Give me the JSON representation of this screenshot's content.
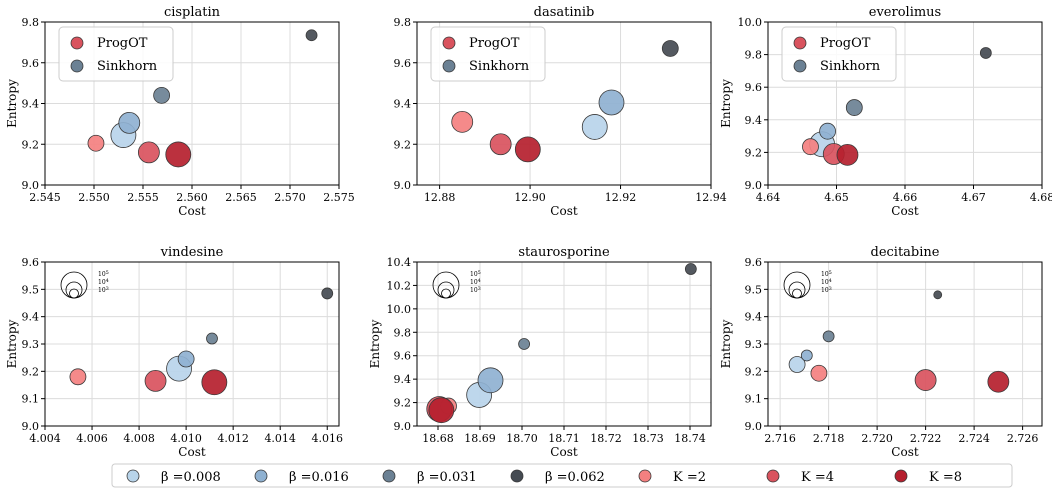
{
  "legend": {
    "entries": [
      {
        "label": "β =0.008",
        "color": "#b8d4ea"
      },
      {
        "label": "β =0.016",
        "color": "#8fb1d1"
      },
      {
        "label": "β =0.031",
        "color": "#6b8194"
      },
      {
        "label": "β =0.062",
        "color": "#454b52"
      },
      {
        "label": "K =2",
        "color": "#f48080"
      },
      {
        "label": "K =4",
        "color": "#d9535e"
      },
      {
        "label": "K =8",
        "color": "#b51f2e"
      }
    ],
    "inset": {
      "progot": "ProgOT",
      "sinkhorn": "Sinkhorn",
      "progot_color": "#d9535e",
      "sinkhorn_color": "#6b8194"
    },
    "sizes": [
      "10^5",
      "10^4",
      "10^3"
    ]
  },
  "chart_data": [
    {
      "type": "scatter",
      "title": "cisplatin",
      "xlabel": "Cost",
      "ylabel": "Entropy",
      "xlim": [
        2.545,
        2.575
      ],
      "ylim": [
        9.0,
        9.8
      ],
      "xticks": [
        "2.545",
        "2.550",
        "2.555",
        "2.560",
        "2.565",
        "2.570",
        "2.575"
      ],
      "yticks": [
        "9.0",
        "9.2",
        "9.4",
        "9.6",
        "9.8"
      ],
      "grid": true,
      "legend": "inset",
      "points": [
        {
          "x": 2.5502,
          "y": 9.205,
          "color": 4,
          "size": "small"
        },
        {
          "x": 2.5556,
          "y": 9.16,
          "color": 5,
          "size": "medium"
        },
        {
          "x": 2.5586,
          "y": 9.15,
          "color": 6,
          "size": "large"
        },
        {
          "x": 2.553,
          "y": 9.245,
          "color": 0,
          "size": "large"
        },
        {
          "x": 2.5536,
          "y": 9.305,
          "color": 1,
          "size": "medium"
        },
        {
          "x": 2.5569,
          "y": 9.44,
          "color": 2,
          "size": "small"
        },
        {
          "x": 2.5722,
          "y": 9.735,
          "color": 3,
          "size": "tiny"
        }
      ]
    },
    {
      "type": "scatter",
      "title": "dasatinib",
      "xlabel": "Cost",
      "ylabel": "",
      "xlim": [
        12.875,
        12.94
      ],
      "ylim": [
        9.0,
        9.8
      ],
      "xticks": [
        "12.88",
        "12.90",
        "12.92",
        "12.94"
      ],
      "xtick_values": [
        12.88,
        12.9,
        12.92,
        12.94
      ],
      "yticks": [
        "9.0",
        "9.2",
        "9.4",
        "9.6",
        "9.8"
      ],
      "grid": true,
      "legend": "inset",
      "points": [
        {
          "x": 12.885,
          "y": 9.31,
          "color": 4,
          "size": "medium"
        },
        {
          "x": 12.8935,
          "y": 9.2,
          "color": 5,
          "size": "medium"
        },
        {
          "x": 12.8995,
          "y": 9.175,
          "color": 6,
          "size": "large"
        },
        {
          "x": 12.9143,
          "y": 9.285,
          "color": 0,
          "size": "large"
        },
        {
          "x": 12.918,
          "y": 9.405,
          "color": 1,
          "size": "large"
        },
        {
          "x": 12.931,
          "y": 9.67,
          "color": 3,
          "size": "small"
        }
      ]
    },
    {
      "type": "scatter",
      "title": "everolimus",
      "xlabel": "Cost",
      "ylabel": "Entropy",
      "xlim": [
        4.64,
        4.68
      ],
      "ylim": [
        9.0,
        10.0
      ],
      "xticks": [
        "4.64",
        "4.65",
        "4.66",
        "4.67",
        "4.68"
      ],
      "yticks": [
        "9.0",
        "9.2",
        "9.4",
        "9.6",
        "9.8",
        "10.0"
      ],
      "grid": true,
      "legend": "inset",
      "points": [
        {
          "x": 4.6479,
          "y": 9.25,
          "color": 0,
          "size": "large"
        },
        {
          "x": 4.6487,
          "y": 9.33,
          "color": 1,
          "size": "small"
        },
        {
          "x": 4.6526,
          "y": 9.475,
          "color": 2,
          "size": "small"
        },
        {
          "x": 4.6718,
          "y": 9.81,
          "color": 3,
          "size": "tiny"
        },
        {
          "x": 4.6462,
          "y": 9.235,
          "color": 4,
          "size": "small"
        },
        {
          "x": 4.6496,
          "y": 9.19,
          "color": 5,
          "size": "medium"
        },
        {
          "x": 4.6516,
          "y": 9.185,
          "color": 6,
          "size": "medium"
        }
      ]
    },
    {
      "type": "scatter",
      "title": "vindesine",
      "xlabel": "Cost",
      "ylabel": "Entropy",
      "xlim": [
        4.004,
        4.0165
      ],
      "ylim": [
        9.0,
        9.6
      ],
      "xticks": [
        "4.004",
        "4.006",
        "4.008",
        "4.010",
        "4.012",
        "4.014",
        "4.016"
      ],
      "xtick_values": [
        4.004,
        4.006,
        4.008,
        4.01,
        4.012,
        4.014,
        4.016
      ],
      "yticks": [
        "9.0",
        "9.1",
        "9.2",
        "9.3",
        "9.4",
        "9.5",
        "9.6"
      ],
      "grid": true,
      "legend": "sizes",
      "points": [
        {
          "x": 4.0054,
          "y": 9.18,
          "color": 4,
          "size": "small"
        },
        {
          "x": 4.0087,
          "y": 9.165,
          "color": 5,
          "size": "medium"
        },
        {
          "x": 4.0097,
          "y": 9.21,
          "color": 0,
          "size": "large"
        },
        {
          "x": 4.01,
          "y": 9.245,
          "color": 1,
          "size": "small"
        },
        {
          "x": 4.0111,
          "y": 9.32,
          "color": 2,
          "size": "tiny"
        },
        {
          "x": 4.0112,
          "y": 9.16,
          "color": 6,
          "size": "large"
        },
        {
          "x": 4.016,
          "y": 9.485,
          "color": 3,
          "size": "tiny"
        }
      ]
    },
    {
      "type": "scatter",
      "title": "staurosporine",
      "xlabel": "Cost",
      "ylabel": "Entropy",
      "xlim": [
        18.675,
        18.745
      ],
      "ylim": [
        9.0,
        10.4
      ],
      "xticks": [
        "18.68",
        "18.69",
        "18.70",
        "18.71",
        "18.72",
        "18.73",
        "18.74"
      ],
      "xtick_values": [
        18.68,
        18.69,
        18.7,
        18.71,
        18.72,
        18.73,
        18.74
      ],
      "yticks": [
        "9.0",
        "9.2",
        "9.4",
        "9.6",
        "9.8",
        "10.0",
        "10.2",
        "10.4"
      ],
      "grid": true,
      "legend": "sizes",
      "points": [
        {
          "x": 18.6825,
          "y": 9.17,
          "color": 4,
          "size": "small"
        },
        {
          "x": 18.6898,
          "y": 9.265,
          "color": 0,
          "size": "large"
        },
        {
          "x": 18.6925,
          "y": 9.39,
          "color": 1,
          "size": "large"
        },
        {
          "x": 18.7005,
          "y": 9.7,
          "color": 2,
          "size": "tiny"
        },
        {
          "x": 18.7402,
          "y": 10.34,
          "color": 3,
          "size": "tiny"
        },
        {
          "x": 18.6803,
          "y": 9.145,
          "color": 5,
          "size": "large"
        },
        {
          "x": 18.6808,
          "y": 9.135,
          "color": 6,
          "size": "large"
        }
      ]
    },
    {
      "type": "scatter",
      "title": "decitabine",
      "xlabel": "Cost",
      "ylabel": "Entropy",
      "xlim": [
        2.7155,
        2.7268
      ],
      "ylim": [
        9.0,
        9.6
      ],
      "xticks": [
        "2.716",
        "2.718",
        "2.720",
        "2.722",
        "2.724",
        "2.726"
      ],
      "xtick_values": [
        2.716,
        2.718,
        2.72,
        2.722,
        2.724,
        2.726
      ],
      "yticks": [
        "9.0",
        "9.1",
        "9.2",
        "9.3",
        "9.4",
        "9.5",
        "9.6"
      ],
      "grid": true,
      "legend": "sizes",
      "points": [
        {
          "x": 2.7167,
          "y": 9.225,
          "color": 0,
          "size": "small"
        },
        {
          "x": 2.7171,
          "y": 9.258,
          "color": 1,
          "size": "tiny"
        },
        {
          "x": 2.718,
          "y": 9.328,
          "color": 2,
          "size": "tiny"
        },
        {
          "x": 2.7225,
          "y": 9.48,
          "color": 3,
          "size": "dot"
        },
        {
          "x": 2.7176,
          "y": 9.193,
          "color": 4,
          "size": "small"
        },
        {
          "x": 2.722,
          "y": 9.168,
          "color": 5,
          "size": "medium"
        },
        {
          "x": 2.725,
          "y": 9.162,
          "color": 6,
          "size": "medium"
        }
      ]
    }
  ]
}
